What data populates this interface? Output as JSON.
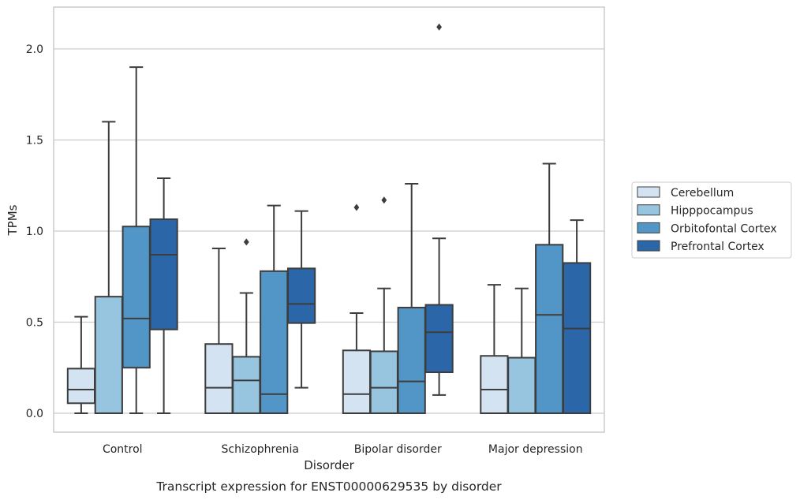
{
  "chart_data": {
    "type": "box",
    "xlabel": "Disorder",
    "ylabel": "TPMs",
    "caption": "Transcript expression for ENST00000629535 by disorder",
    "ylim": [
      -0.1,
      2.25
    ],
    "yticks": [
      0.0,
      0.5,
      1.0,
      1.5,
      2.0
    ],
    "ytick_labels": [
      "0.0",
      "0.5",
      "1.0",
      "1.5",
      "2.0"
    ],
    "grid": true,
    "legend_position": "right",
    "categories": [
      "Control",
      "Schizophrenia",
      "Bipolar disorder",
      "Major depression"
    ],
    "series": [
      {
        "name": "Cerebellum",
        "color": "#d4e3f2",
        "boxes": [
          {
            "whisker_low": 0.0,
            "q1": 0.055,
            "median": 0.13,
            "q3": 0.245,
            "whisker_high": 0.53,
            "outliers": []
          },
          {
            "whisker_low": 0.0,
            "q1": 0.0,
            "median": 0.14,
            "q3": 0.38,
            "whisker_high": 0.905,
            "outliers": []
          },
          {
            "whisker_low": 0.0,
            "q1": 0.0,
            "median": 0.105,
            "q3": 0.345,
            "whisker_high": 0.55,
            "outliers": [
              1.13
            ]
          },
          {
            "whisker_low": 0.0,
            "q1": 0.0,
            "median": 0.13,
            "q3": 0.315,
            "whisker_high": 0.705,
            "outliers": []
          }
        ]
      },
      {
        "name": "Hipppocampus",
        "color": "#97c4df",
        "boxes": [
          {
            "whisker_low": 0.0,
            "q1": 0.0,
            "median": 0.0,
            "q3": 0.64,
            "whisker_high": 1.6,
            "outliers": []
          },
          {
            "whisker_low": 0.0,
            "q1": 0.0,
            "median": 0.18,
            "q3": 0.31,
            "whisker_high": 0.66,
            "outliers": [
              0.94
            ]
          },
          {
            "whisker_low": 0.0,
            "q1": 0.0,
            "median": 0.14,
            "q3": 0.34,
            "whisker_high": 0.685,
            "outliers": [
              1.17
            ]
          },
          {
            "whisker_low": 0.0,
            "q1": 0.0,
            "median": 0.0,
            "q3": 0.305,
            "whisker_high": 0.685,
            "outliers": []
          }
        ]
      },
      {
        "name": "Orbitofontal Cortex",
        "color": "#5196c6",
        "boxes": [
          {
            "whisker_low": 0.0,
            "q1": 0.25,
            "median": 0.52,
            "q3": 1.025,
            "whisker_high": 1.9,
            "outliers": []
          },
          {
            "whisker_low": 0.0,
            "q1": 0.0,
            "median": 0.105,
            "q3": 0.78,
            "whisker_high": 1.14,
            "outliers": []
          },
          {
            "whisker_low": 0.0,
            "q1": 0.0,
            "median": 0.175,
            "q3": 0.58,
            "whisker_high": 1.26,
            "outliers": []
          },
          {
            "whisker_low": 0.0,
            "q1": 0.0,
            "median": 0.54,
            "q3": 0.925,
            "whisker_high": 1.37,
            "outliers": []
          }
        ]
      },
      {
        "name": "Prefrontal Cortex",
        "color": "#2a66a8",
        "boxes": [
          {
            "whisker_low": 0.0,
            "q1": 0.46,
            "median": 0.87,
            "q3": 1.065,
            "whisker_high": 1.29,
            "outliers": []
          },
          {
            "whisker_low": 0.14,
            "q1": 0.495,
            "median": 0.6,
            "q3": 0.795,
            "whisker_high": 1.11,
            "outliers": []
          },
          {
            "whisker_low": 0.1,
            "q1": 0.225,
            "median": 0.445,
            "q3": 0.595,
            "whisker_high": 0.96,
            "outliers": [
              2.12
            ]
          },
          {
            "whisker_low": 0.0,
            "q1": 0.0,
            "median": 0.465,
            "q3": 0.825,
            "whisker_high": 1.06,
            "outliers": []
          }
        ]
      }
    ]
  }
}
